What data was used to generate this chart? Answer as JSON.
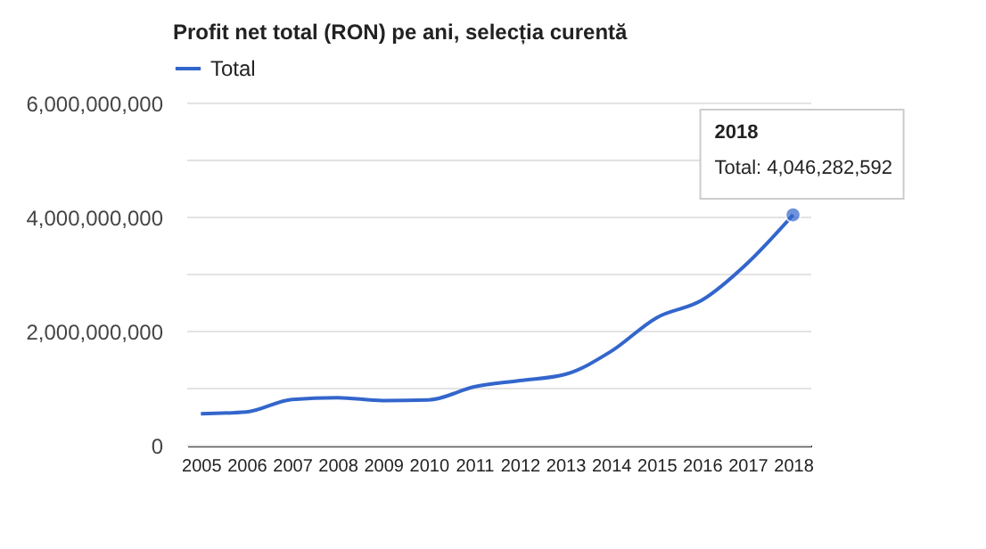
{
  "chart_data": {
    "type": "line",
    "title": "Profit net total (RON) pe ani, selecția curentă",
    "x": [
      2005,
      2006,
      2007,
      2008,
      2009,
      2010,
      2011,
      2012,
      2013,
      2014,
      2015,
      2016,
      2017,
      2018
    ],
    "series": [
      {
        "name": "Total",
        "color": "#3366cc",
        "values": [
          560000000,
          590000000,
          810000000,
          840000000,
          790000000,
          800000000,
          1030000000,
          1140000000,
          1250000000,
          1650000000,
          2240000000,
          2550000000,
          3200000000,
          4046282592
        ]
      }
    ],
    "xlim": [
      2004.7,
      2018.4
    ],
    "xticks": [
      2005,
      2006,
      2007,
      2008,
      2009,
      2010,
      2011,
      2012,
      2013,
      2014,
      2015,
      2016,
      2017,
      2018
    ],
    "ylim": [
      0,
      6000000000
    ],
    "yticks": [
      {
        "value": 0,
        "label": "0"
      },
      {
        "value": 1000000000,
        "label": null
      },
      {
        "value": 2000000000,
        "label": "2,000,000,000"
      },
      {
        "value": 3000000000,
        "label": null
      },
      {
        "value": 4000000000,
        "label": "4,000,000,000"
      },
      {
        "value": 5000000000,
        "label": null
      },
      {
        "value": 6000000000,
        "label": "6,000,000,000"
      }
    ],
    "grid": "y",
    "legend": "top left",
    "annotations": [
      "2018",
      "Total: 4,046,282,592"
    ]
  }
}
